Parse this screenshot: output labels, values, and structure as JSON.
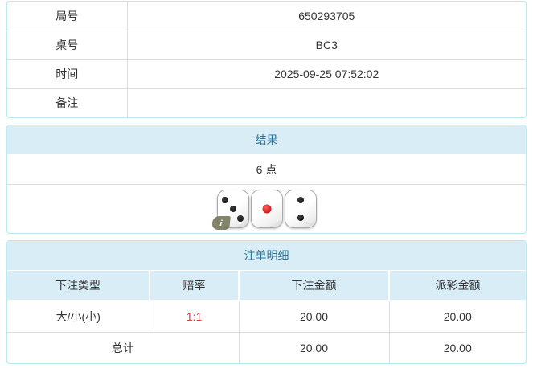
{
  "colors": {
    "panel_border": "#bce8f1",
    "header_bg": "#d9edf7",
    "header_text": "#31708f",
    "inner_border": "#dddddd",
    "body_text": "#333333",
    "odds_red": "#e03b3b"
  },
  "info_table": {
    "rows": [
      {
        "label": "局号",
        "value": "650293705"
      },
      {
        "label": "桌号",
        "value": "BC3"
      },
      {
        "label": "时间",
        "value": "2025-09-25 07:52:02"
      },
      {
        "label": "备注",
        "value": ""
      }
    ]
  },
  "result_panel": {
    "title": "结果",
    "points": "6 点",
    "dice": [
      {
        "value": 3,
        "pip_color": "black",
        "has_info_badge": true
      },
      {
        "value": 1,
        "pip_color": "red",
        "has_info_badge": false
      },
      {
        "value": 2,
        "pip_color": "black",
        "has_info_badge": false
      }
    ],
    "info_badge_label": "i"
  },
  "bet_panel": {
    "title": "注单明细",
    "columns": [
      "下注类型",
      "赔率",
      "下注金额",
      "派彩金额"
    ],
    "rows": [
      {
        "bet_type": "大/小(小)",
        "odds": "1:1",
        "bet_amount": "20.00",
        "payout_amount": "20.00"
      }
    ],
    "total": {
      "label": "总计",
      "bet_amount": "20.00",
      "payout_amount": "20.00"
    }
  }
}
